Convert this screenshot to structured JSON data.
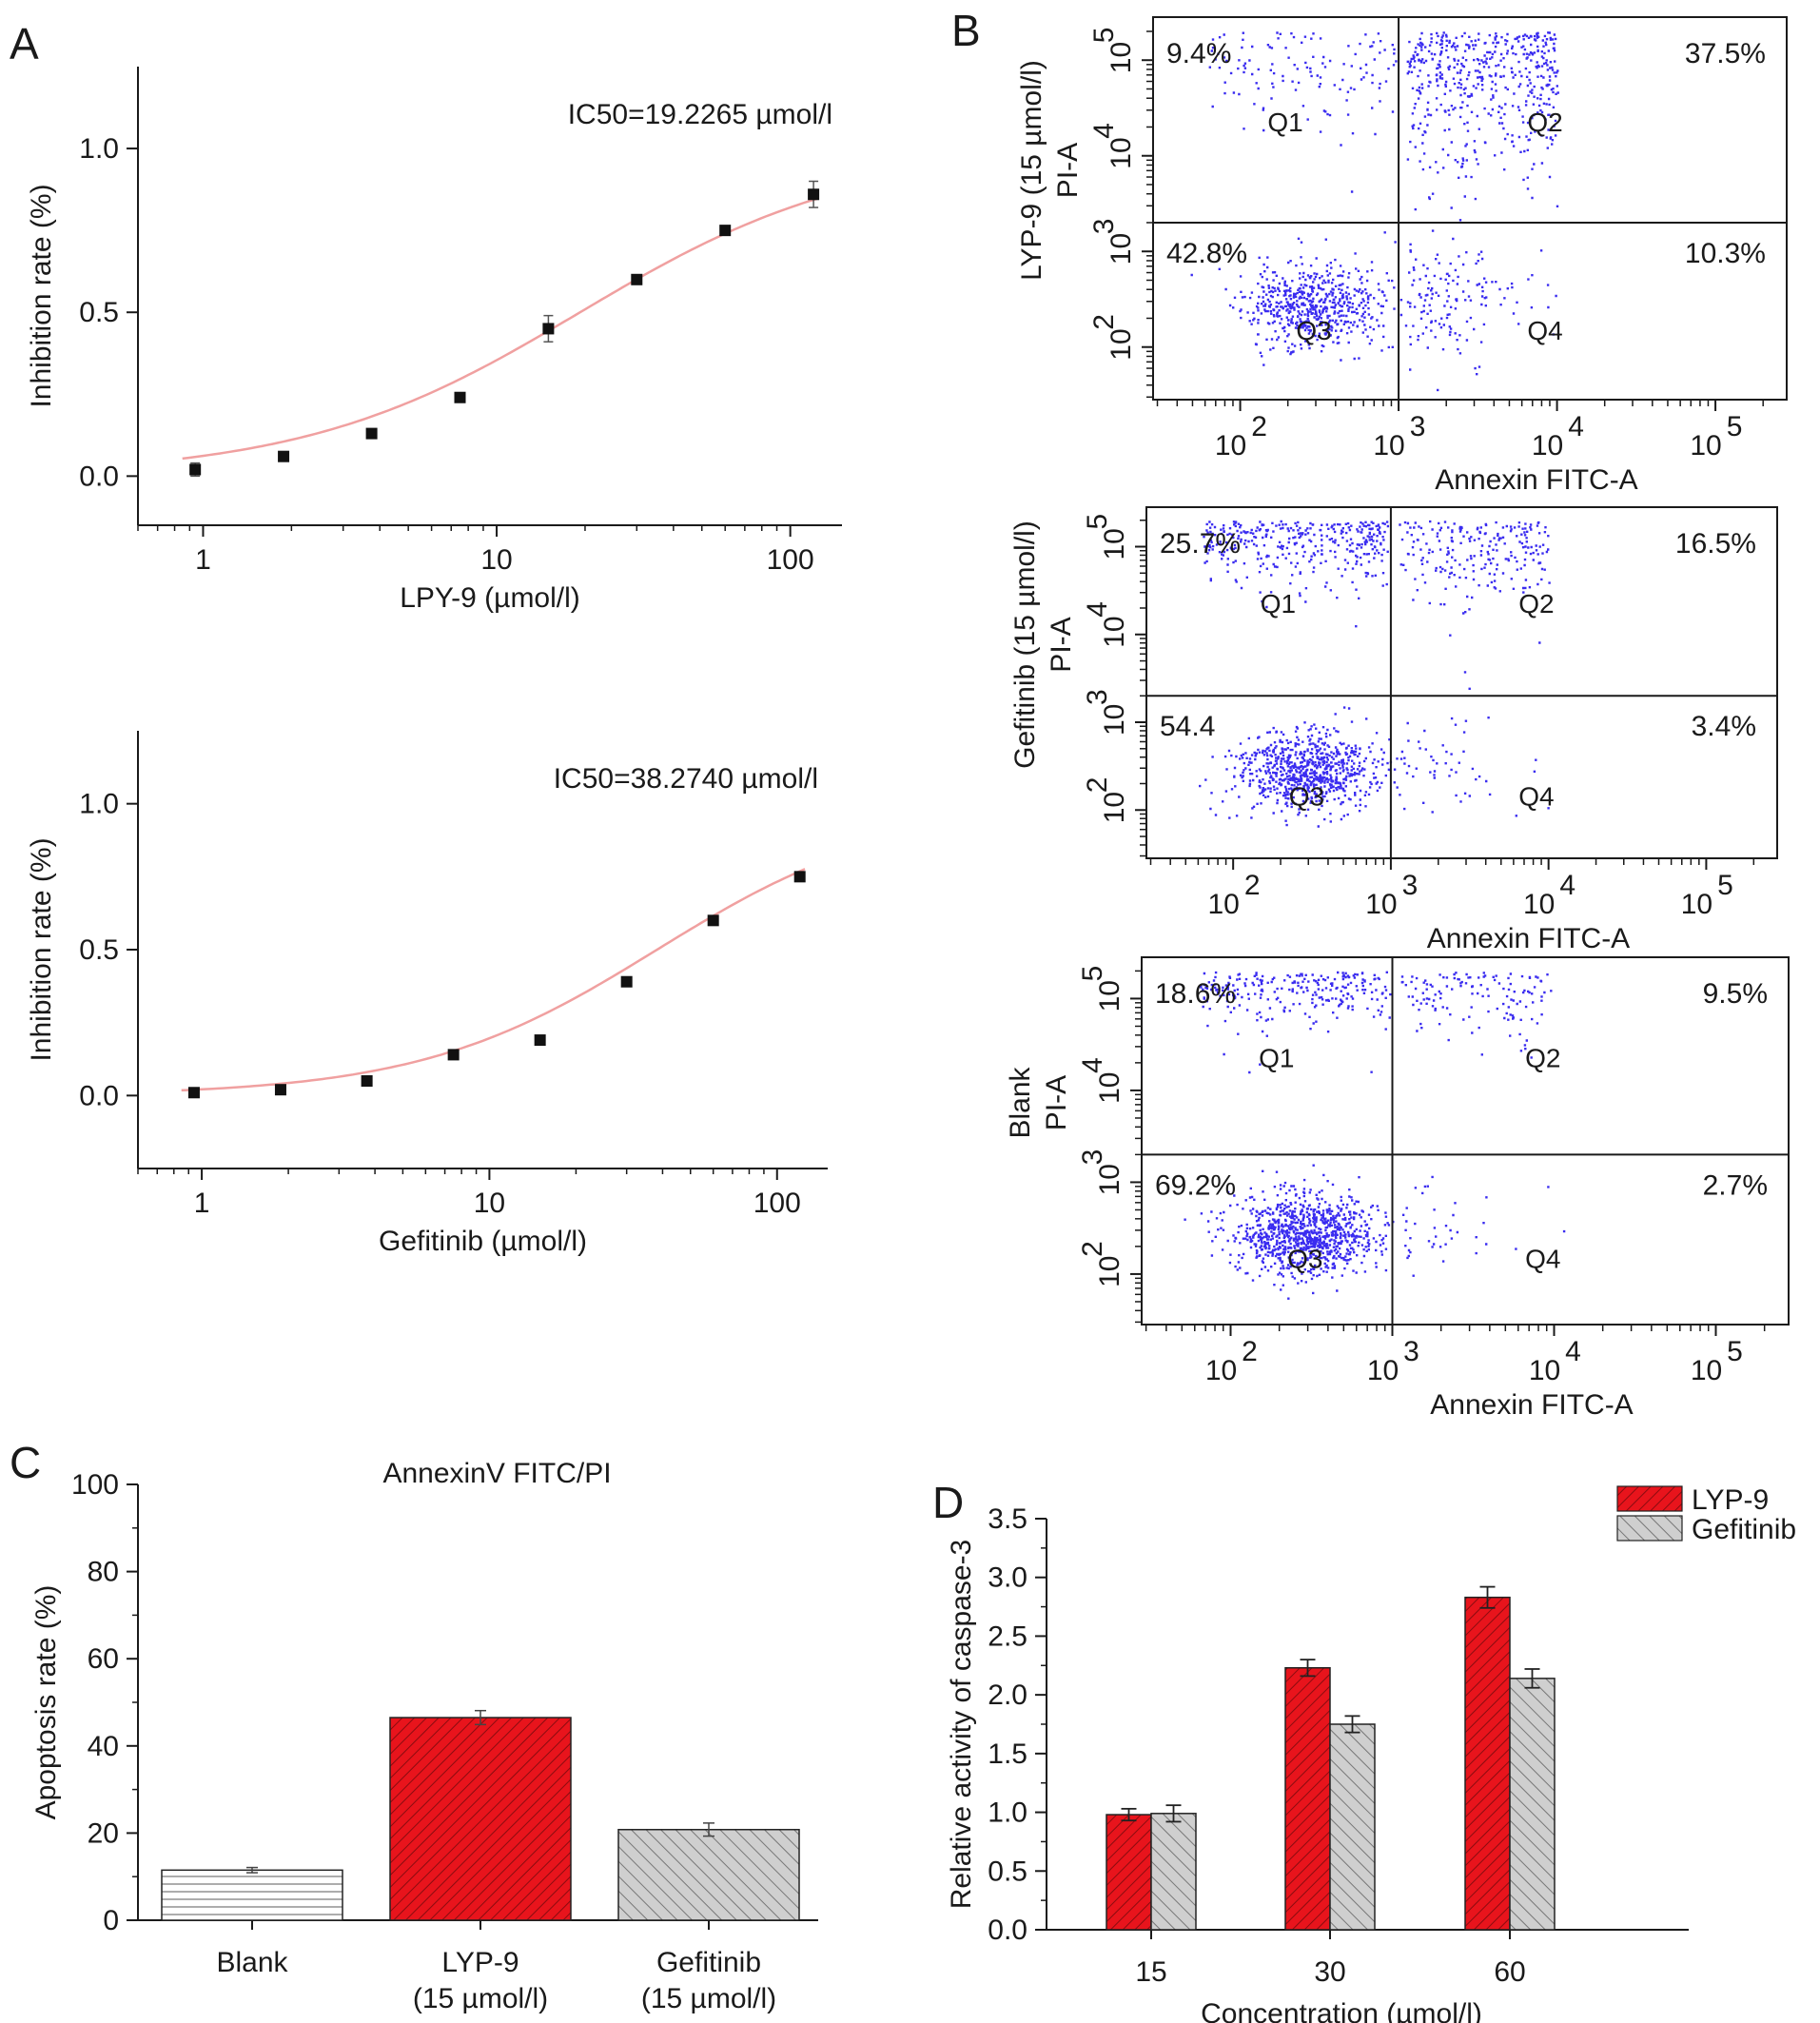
{
  "figure": {
    "panel_letters": [
      "A",
      "B",
      "C",
      "D"
    ]
  },
  "colors": {
    "lyp9_red": "#e8141c",
    "gefitinib_gray": "#c8c8c8",
    "fit_curve": "#f0a0a0",
    "dot_blue": "#3a2cf0",
    "axis": "#1a1a1a"
  },
  "chart_data": [
    {
      "id": "A1",
      "type": "scatter",
      "title": "IC50=19.2265 µmol/l",
      "xlabel": "LPY-9 (µmol/l)",
      "ylabel": "Inhibition rate (%)",
      "xscale": "log",
      "xlim": [
        0.6,
        150
      ],
      "ylim": [
        -0.15,
        1.25
      ],
      "xticks": [
        1,
        10,
        100
      ],
      "xtick_labels": [
        "1",
        "10",
        "100"
      ],
      "yticks": [
        0.0,
        0.5,
        1.0
      ],
      "ytick_labels": [
        "0.0",
        "0.5",
        "1.0"
      ],
      "x": [
        0.94,
        1.88,
        3.75,
        7.5,
        15,
        30,
        60,
        120
      ],
      "y": [
        0.02,
        0.06,
        0.13,
        0.24,
        0.45,
        0.6,
        0.75,
        0.86
      ],
      "errors": [
        0.02,
        0.01,
        0.01,
        0.01,
        0.04,
        0.01,
        0.01,
        0.04
      ],
      "fit": {
        "model": "logistic",
        "bottom": 0.0,
        "top": 1.0,
        "ic50": 19.2265,
        "hill": 0.92
      }
    },
    {
      "id": "A2",
      "type": "scatter",
      "title": "IC50=38.2740 µmol/l",
      "xlabel": "Gefitinib (µmol/l)",
      "ylabel": "Inhibition rate (%)",
      "xscale": "log",
      "xlim": [
        0.6,
        150
      ],
      "ylim": [
        -0.25,
        1.25
      ],
      "xticks": [
        1,
        10,
        100
      ],
      "xtick_labels": [
        "1",
        "10",
        "100"
      ],
      "yticks": [
        0.0,
        0.5,
        1.0
      ],
      "ytick_labels": [
        "0.0",
        "0.5",
        "1.0"
      ],
      "x": [
        0.94,
        1.88,
        3.75,
        7.5,
        15,
        30,
        60,
        120
      ],
      "y": [
        0.01,
        0.02,
        0.05,
        0.14,
        0.19,
        0.39,
        0.6,
        0.75
      ],
      "errors": [
        0.005,
        0.005,
        0.005,
        0.01,
        0.01,
        0.015,
        0.01,
        0.01
      ],
      "fit": {
        "model": "logistic",
        "bottom": 0.0,
        "top": 1.0,
        "ic50": 38.274,
        "hill": 1.05
      }
    },
    {
      "id": "B",
      "type": "scatter",
      "subtype": "flow-cytometry-quadrant",
      "xlabel": "Annexin FITC-A",
      "ylabel": "PI-A",
      "xscale": "log",
      "yscale": "log",
      "xtick_labels": [
        "10",
        "10",
        "10",
        "10"
      ],
      "xtick_exponents": [
        "2",
        "3",
        "4",
        "5"
      ],
      "ytick_labels": [
        "10",
        "10",
        "10",
        "10"
      ],
      "ytick_exponents": [
        "2",
        "3",
        "4",
        "5"
      ],
      "gate": {
        "x": 1000,
        "y": 2000
      },
      "quadrant_labels": [
        "Q1",
        "Q2",
        "Q3",
        "Q4"
      ],
      "samples": [
        {
          "name": "LYP-9 (15 µmol/l)",
          "q1": "9.4%",
          "q2": "37.5%",
          "q3": "42.8%",
          "q4": "10.3%"
        },
        {
          "name": "Gefitinib (15 µmol/l)",
          "q1": "25.7%",
          "q2": "16.5%",
          "q3": "54.4",
          "q4": "3.4%"
        },
        {
          "name": "Blank",
          "q1": "18.6%",
          "q2": "9.5%",
          "q3": "69.2%",
          "q4": "2.7%"
        }
      ]
    },
    {
      "id": "C",
      "type": "bar",
      "title": "AnnexinV FITC/PI",
      "xlabel": "",
      "ylabel": "Apoptosis rate (%)",
      "ylim": [
        0,
        100
      ],
      "yticks": [
        0,
        20,
        40,
        60,
        80,
        100
      ],
      "ytick_labels": [
        "0",
        "20",
        "40",
        "60",
        "80",
        "100"
      ],
      "categories": [
        {
          "line1": "Blank",
          "line2": ""
        },
        {
          "line1": "LYP-9",
          "line2": "(15 µmol/l)"
        },
        {
          "line1": "Gefitinib",
          "line2": "(15 µmol/l)"
        }
      ],
      "values": [
        11.5,
        46.5,
        20.8
      ],
      "errors": [
        0.6,
        1.6,
        1.5
      ]
    },
    {
      "id": "D",
      "type": "bar",
      "xlabel": "Concentration (µmol/l)",
      "ylabel": "Relative activity of caspase-3",
      "ylim": [
        0,
        3.5
      ],
      "yticks": [
        0,
        0.5,
        1.0,
        1.5,
        2.0,
        2.5,
        3.0,
        3.5
      ],
      "ytick_labels": [
        "0.0",
        "0.5",
        "1.0",
        "1.5",
        "2.0",
        "2.5",
        "3.0",
        "3.5"
      ],
      "categories": [
        "15",
        "30",
        "60"
      ],
      "legend_position": "top-right",
      "series": [
        {
          "name": "LYP-9",
          "values": [
            0.98,
            2.23,
            2.83
          ],
          "errors": [
            0.05,
            0.07,
            0.09
          ]
        },
        {
          "name": "Gefitinib",
          "values": [
            0.99,
            1.75,
            2.14
          ],
          "errors": [
            0.07,
            0.07,
            0.08
          ]
        }
      ]
    }
  ]
}
